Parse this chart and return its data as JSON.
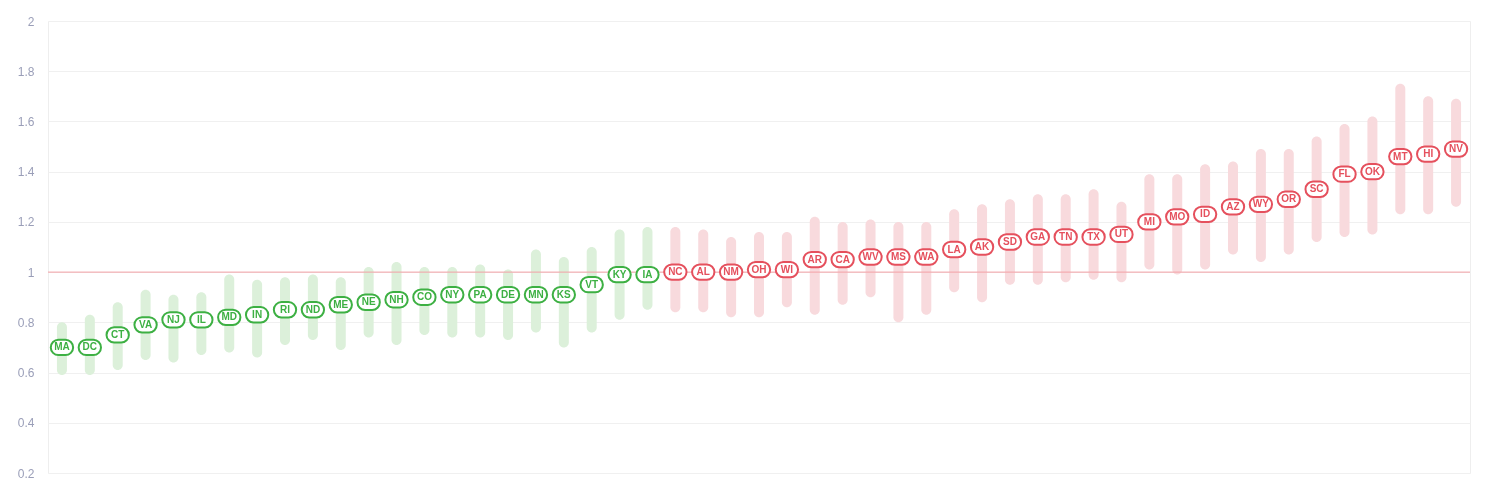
{
  "chart_data": {
    "type": "bar",
    "categories": [
      null,
      null,
      null,
      null,
      null,
      null,
      null,
      null,
      null,
      null,
      null,
      null,
      null,
      null,
      null,
      null,
      null,
      null,
      null,
      null,
      null,
      null,
      null,
      null,
      null,
      null,
      null,
      null,
      null,
      null,
      null,
      null,
      null,
      null,
      null,
      null,
      null,
      null,
      null,
      null,
      null,
      null,
      null,
      null,
      null,
      null,
      null,
      null,
      null,
      null,
      null
    ],
    "series": [
      {
        "colors": [
          "#dcf0da",
          "#dcf0da",
          "#dcf0da",
          "#dcf0da",
          "#dcf0da",
          "#dcf0da",
          "#dcf0da",
          "#dcf0da",
          "#dcf0da",
          "#dcf0da",
          "#dcf0da",
          "#dcf0da",
          "#dcf0da",
          "#dcf0da",
          "#dcf0da",
          "#dcf0da",
          "#dcf0da",
          "#dcf0da",
          "#dcf0da",
          "#dcf0da",
          "#dcf0da",
          "#dcf0da",
          "#f8dadd",
          "#f8dadd",
          "#f8dadd",
          "#f8dadd",
          "#f8dadd",
          "#f8dadd",
          "#f8dadd",
          "#f8dadd",
          "#f8dadd",
          "#f8dadd",
          "#f8dadd",
          "#f8dadd",
          "#f8dadd",
          "#f8dadd",
          "#f8dadd",
          "#f8dadd",
          "#f8dadd",
          "#f8dadd",
          "#f8dadd",
          "#f8dadd",
          "#f8dadd",
          "#f8dadd",
          "#f8dadd",
          "#f8dadd",
          "#f8dadd",
          "#f8dadd",
          "#f8dadd",
          "#f8dadd",
          "#f8dadd"
        ],
        "base": [
          0.59,
          0.59,
          0.61,
          0.65,
          0.64,
          0.67,
          0.68,
          0.66,
          0.71,
          0.73,
          0.69,
          0.74,
          0.71,
          0.75,
          0.74,
          0.74,
          0.73,
          0.76,
          0.7,
          0.76,
          0.81,
          0.85,
          0.84,
          0.84,
          0.82,
          0.82,
          0.86,
          0.83,
          0.87,
          0.9,
          0.8,
          0.83,
          0.92,
          0.88,
          0.95,
          0.95,
          0.96,
          0.97,
          0.96,
          1.01,
          0.99,
          1.01,
          1.07,
          1.04,
          1.07,
          1.12,
          1.14,
          1.15,
          1.23,
          1.23,
          1.26
        ],
        "values": [
          0.21,
          0.24,
          0.27,
          0.28,
          0.27,
          0.25,
          0.31,
          0.31,
          0.27,
          0.26,
          0.29,
          0.28,
          0.33,
          0.27,
          0.28,
          0.29,
          0.28,
          0.33,
          0.36,
          0.34,
          0.36,
          0.33,
          0.34,
          0.33,
          0.32,
          0.34,
          0.3,
          0.39,
          0.33,
          0.31,
          0.4,
          0.37,
          0.33,
          0.39,
          0.34,
          0.36,
          0.35,
          0.36,
          0.32,
          0.38,
          0.4,
          0.42,
          0.37,
          0.45,
          0.42,
          0.42,
          0.45,
          0.47,
          0.52,
          0.47,
          0.43
        ]
      },
      {
        "type": "scatter",
        "colors": [
          "#3db043",
          "#3db043",
          "#3db043",
          "#3db043",
          "#3db043",
          "#3db043",
          "#3db043",
          "#3db043",
          "#3db043",
          "#3db043",
          "#3db043",
          "#3db043",
          "#3db043",
          "#3db043",
          "#3db043",
          "#3db043",
          "#3db043",
          "#3db043",
          "#3db043",
          "#3db043",
          "#3db043",
          "#3db043",
          "#e5505d",
          "#e5505d",
          "#e5505d",
          "#e5505d",
          "#e5505d",
          "#e5505d",
          "#e5505d",
          "#e5505d",
          "#e5505d",
          "#e5505d",
          "#e5505d",
          "#e5505d",
          "#e5505d",
          "#e5505d",
          "#e5505d",
          "#e5505d",
          "#e5505d",
          "#e5505d",
          "#e5505d",
          "#e5505d",
          "#e5505d",
          "#e5505d",
          "#e5505d",
          "#e5505d",
          "#e5505d",
          "#e5505d",
          "#e5505d",
          "#e5505d",
          "#e5505d"
        ],
        "values": [
          0.7,
          0.7,
          0.75,
          0.79,
          0.81,
          0.81,
          0.82,
          0.83,
          0.85,
          0.85,
          0.87,
          0.88,
          0.89,
          0.9,
          0.91,
          0.91,
          0.91,
          0.91,
          0.91,
          0.95,
          0.99,
          0.99,
          1.0,
          1.0,
          1.0,
          1.01,
          1.01,
          1.05,
          1.05,
          1.06,
          1.06,
          1.06,
          1.09,
          1.1,
          1.12,
          1.14,
          1.14,
          1.14,
          1.15,
          1.2,
          1.22,
          1.23,
          1.26,
          1.27,
          1.29,
          1.33,
          1.39,
          1.4,
          1.46,
          1.47,
          1.49
        ],
        "value_labels": [
          "MA",
          "DC",
          "CT",
          "VA",
          "NJ",
          "IL",
          "MD",
          "IN",
          "RI",
          "ND",
          "ME",
          "NE",
          "NH",
          "CO",
          "NY",
          "PA",
          "DE",
          "MN",
          "KS",
          "VT",
          "KY",
          "IA",
          "NC",
          "AL",
          "NM",
          "OH",
          "WI",
          "AR",
          "CA",
          "WV",
          "MS",
          "WA",
          "LA",
          "AK",
          "SD",
          "GA",
          "TN",
          "TX",
          "UT",
          "MI",
          "MO",
          "ID",
          "AZ",
          "WY",
          "OR",
          "SC",
          "FL",
          "OK",
          "MT",
          "HI",
          "NV"
        ]
      }
    ],
    "ylim": [
      0.2,
      2
    ],
    "yticks": [
      0.2,
      0.4,
      0.6,
      0.8,
      1,
      1.2,
      1.4,
      1.6,
      1.8,
      2
    ],
    "grid": "y",
    "tick_labels": "y",
    "ref_lines": [
      {
        "axis": "y",
        "value": 1,
        "color": "#f3a0a5"
      }
    ]
  }
}
